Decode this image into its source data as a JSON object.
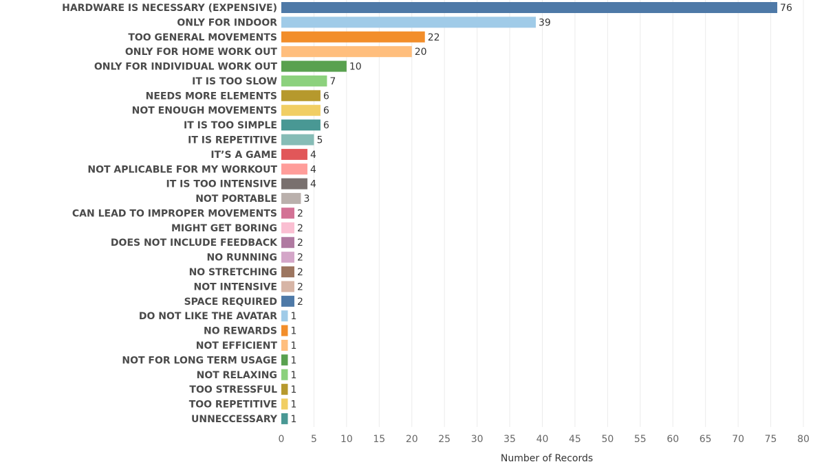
{
  "chart_data": {
    "type": "bar",
    "orientation": "horizontal",
    "title": "",
    "xlabel": "Number of Records",
    "ylabel": "",
    "xlim": [
      0,
      80
    ],
    "x_ticks": [
      0,
      5,
      10,
      15,
      20,
      25,
      30,
      35,
      40,
      45,
      50,
      55,
      60,
      65,
      70,
      75,
      80
    ],
    "grid": true,
    "legend": "none",
    "categories": [
      "HARDWARE IS NECESSARY (EXPENSIVE)",
      "ONLY FOR INDOOR",
      "TOO GENERAL MOVEMENTS",
      "ONLY FOR HOME WORK OUT",
      "ONLY FOR INDIVIDUAL WORK OUT",
      "IT IS TOO SLOW",
      "NEEDS MORE ELEMENTS",
      "NOT ENOUGH MOVEMENTS",
      "IT IS TOO SIMPLE",
      "IT IS REPETITIVE",
      "IT’S A GAME",
      "NOT APLICABLE FOR MY WORKOUT",
      "IT IS TOO INTENSIVE",
      "NOT PORTABLE",
      "CAN LEAD TO IMPROPER MOVEMENTS",
      "MIGHT GET BORING",
      "DOES NOT INCLUDE FEEDBACK",
      "NO RUNNING",
      "NO STRETCHING",
      "NOT INTENSIVE",
      "SPACE REQUIRED",
      "DO NOT LIKE THE AVATAR",
      "NO REWARDS",
      "NOT EFFICIENT",
      "NOT FOR LONG TERM USAGE",
      "NOT RELAXING",
      "TOO STRESSFUL",
      "TOO REPETITIVE",
      "UNNECCESSARY"
    ],
    "values": [
      76,
      39,
      22,
      20,
      10,
      7,
      6,
      6,
      6,
      5,
      4,
      4,
      4,
      3,
      2,
      2,
      2,
      2,
      2,
      2,
      2,
      1,
      1,
      1,
      1,
      1,
      1,
      1,
      1
    ],
    "colors": [
      "#4e79a7",
      "#a0cbe8",
      "#f28e2b",
      "#ffbe7d",
      "#59a14f",
      "#8cd17d",
      "#b6992d",
      "#f1ce63",
      "#499894",
      "#86bcb6",
      "#e15759",
      "#ff9d9a",
      "#79706e",
      "#bab0ac",
      "#d37295",
      "#fabfd2",
      "#b07aa1",
      "#d4a6c8",
      "#9d7660",
      "#d7b5a6",
      "#4e79a7",
      "#a0cbe8",
      "#f28e2b",
      "#ffbe7d",
      "#59a14f",
      "#8cd17d",
      "#b6992d",
      "#f1ce63",
      "#499894"
    ]
  }
}
